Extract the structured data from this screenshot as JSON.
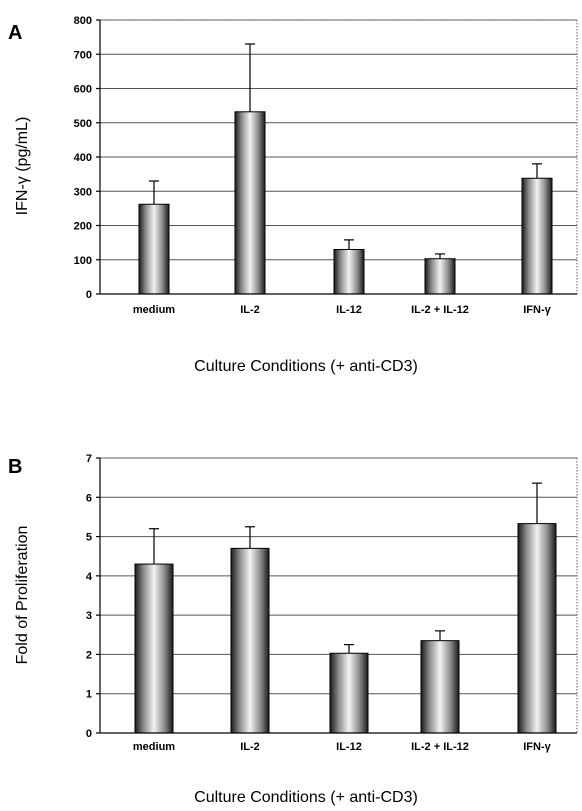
{
  "chart_data": [
    {
      "panel": "A",
      "type": "bar",
      "categories": [
        "medium",
        "IL-2",
        "IL-12",
        "IL-2  +  IL-12",
        "IFN-γ"
      ],
      "values": [
        262,
        532,
        130,
        103,
        338
      ],
      "error": [
        68,
        198,
        28,
        14,
        42
      ],
      "ylabel": "IFN-γ (pg/mL)",
      "xlabel": "Culture Conditions (+ anti-CD3)",
      "ylim": [
        0,
        800
      ],
      "yticks": [
        0,
        100,
        200,
        300,
        400,
        500,
        600,
        700,
        800
      ],
      "grid": true,
      "bar_color": "#bdbdbd"
    },
    {
      "panel": "B",
      "type": "bar",
      "categories": [
        "medium",
        "IL-2",
        "IL-12",
        "IL-2  +  IL-12",
        "IFN-γ"
      ],
      "values": [
        4.3,
        4.7,
        2.03,
        2.35,
        5.33
      ],
      "error": [
        0.9,
        0.55,
        0.22,
        0.25,
        1.03
      ],
      "ylabel": "Fold of Proliferation",
      "xlabel": "Culture Conditions (+ anti-CD3)",
      "ylim": [
        0,
        7
      ],
      "yticks": [
        0,
        1,
        2,
        3,
        4,
        5,
        6,
        7
      ],
      "grid": true,
      "bar_color": "#bdbdbd"
    }
  ]
}
